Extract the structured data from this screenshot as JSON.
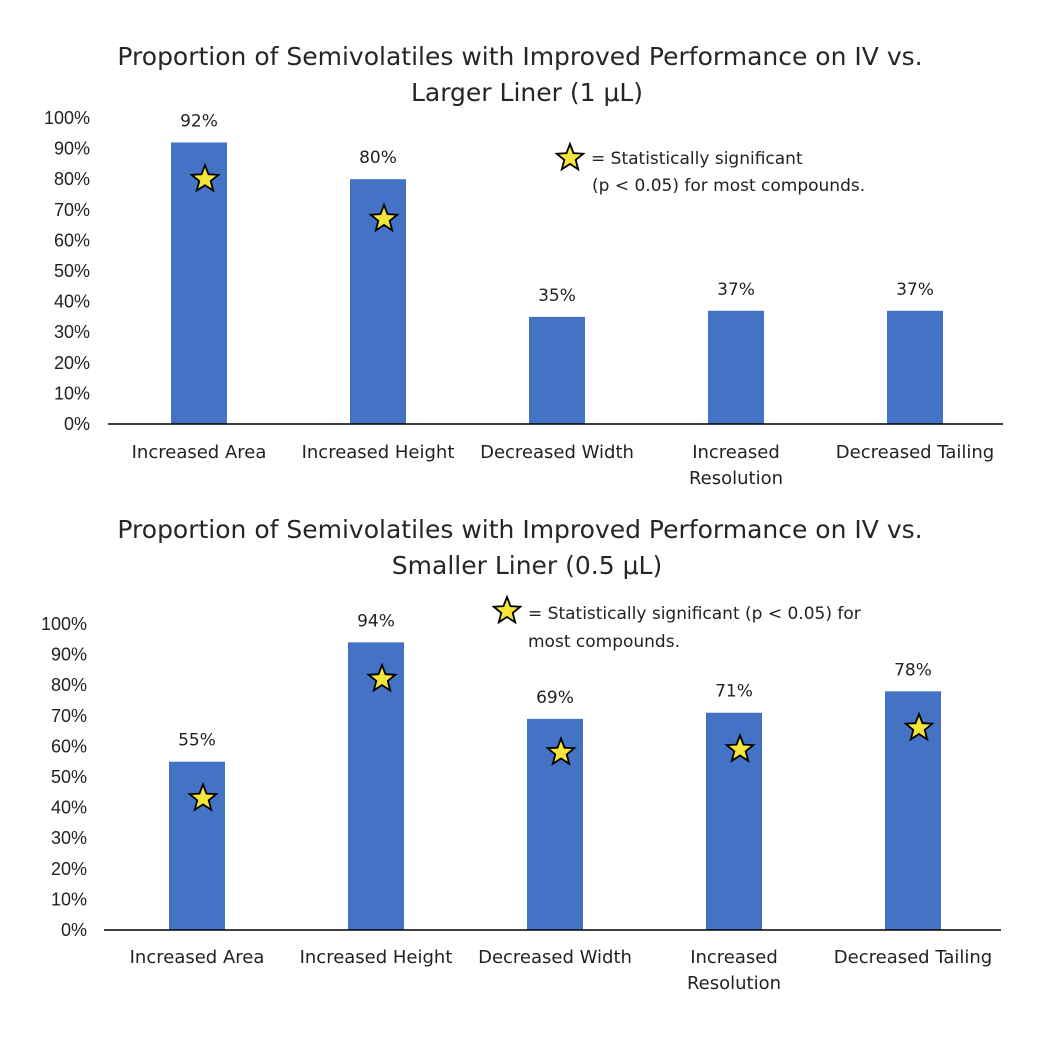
{
  "colors": {
    "bar": "#4472C4",
    "star_fill": "#F5E43A",
    "star_stroke": "#000000",
    "axis": "#000000"
  },
  "chart_data": [
    {
      "type": "bar",
      "title_line1": "Proportion of Semivolatiles with Improved Performance on IV vs.",
      "title_line2": "Larger Liner (1 μL)",
      "categories": [
        [
          "Increased Area"
        ],
        [
          "Increased Height"
        ],
        [
          "Decreased Width"
        ],
        [
          "Increased",
          "Resolution"
        ],
        [
          "Decreased Tailing"
        ]
      ],
      "values": [
        92,
        80,
        35,
        37,
        37
      ],
      "value_labels": [
        "92%",
        "80%",
        "35%",
        "37%",
        "37%"
      ],
      "significant": [
        true,
        true,
        false,
        false,
        false
      ],
      "star_values": [
        80,
        67,
        null,
        null,
        null
      ],
      "ylim": [
        0,
        100
      ],
      "yticks": [
        "0%",
        "10%",
        "20%",
        "30%",
        "40%",
        "50%",
        "60%",
        "70%",
        "80%",
        "90%",
        "100%"
      ],
      "legend": {
        "line1": "= Statistically significant",
        "line2": "(p < 0.05) for most compounds."
      }
    },
    {
      "type": "bar",
      "title_line1": "Proportion of Semivolatiles with Improved Performance on IV vs.",
      "title_line2": "Smaller Liner (0.5 μL)",
      "categories": [
        [
          "Increased Area"
        ],
        [
          "Increased Height"
        ],
        [
          "Decreased Width"
        ],
        [
          "Increased",
          "Resolution"
        ],
        [
          "Decreased Tailing"
        ]
      ],
      "values": [
        55,
        94,
        69,
        71,
        78
      ],
      "value_labels": [
        "55%",
        "94%",
        "69%",
        "71%",
        "78%"
      ],
      "significant": [
        true,
        true,
        true,
        true,
        true
      ],
      "star_values": [
        43,
        82,
        58,
        59,
        66
      ],
      "ylim": [
        0,
        100
      ],
      "yticks": [
        "0%",
        "10%",
        "20%",
        "30%",
        "40%",
        "50%",
        "60%",
        "70%",
        "80%",
        "90%",
        "100%"
      ],
      "legend": {
        "line1": "= Statistically significant (p < 0.05) for",
        "line2": "most compounds."
      }
    }
  ]
}
